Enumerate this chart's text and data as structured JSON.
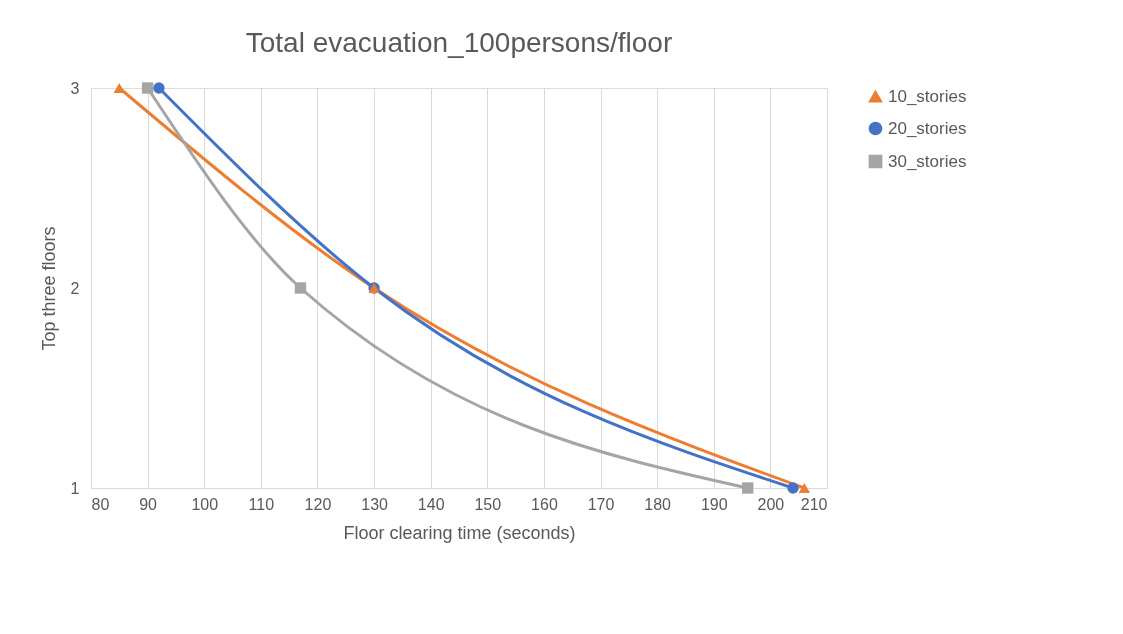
{
  "chart_data": {
    "type": "line",
    "title": "Total evacuation_100persons/floor",
    "xlabel": "Floor clearing time (seconds)",
    "ylabel": "Top three floors",
    "series": [
      {
        "name": "10_stories",
        "color": "#ed7d31",
        "marker": "triangle",
        "x": [
          85,
          130,
          206
        ],
        "values": [
          3,
          2,
          1
        ]
      },
      {
        "name": "20_stories",
        "color": "#4472c4",
        "marker": "circle",
        "x": [
          92,
          130,
          204
        ],
        "values": [
          3,
          2,
          1
        ]
      },
      {
        "name": "30_stories",
        "color": "#a5a5a5",
        "marker": "square",
        "x": [
          90,
          117,
          196
        ],
        "values": [
          3,
          2,
          1
        ]
      }
    ],
    "xlim": [
      80,
      210
    ],
    "xticks": [
      80,
      90,
      100,
      110,
      120,
      130,
      140,
      150,
      160,
      170,
      180,
      190,
      200,
      210
    ],
    "ylim": [
      1,
      3
    ],
    "yticks": [
      1,
      2,
      3
    ],
    "grid": "x",
    "legend": "right",
    "line_style": "solid"
  }
}
